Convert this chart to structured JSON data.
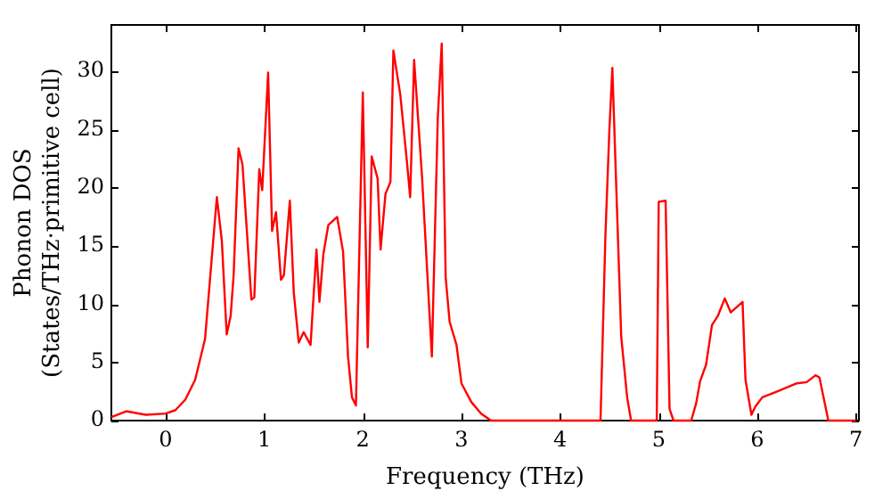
{
  "chart_data": {
    "type": "line",
    "xlabel": "Frequency (THz)",
    "ylabel": "Phonon DOS\n(States/THz·primitive cell)",
    "xlim": [
      -0.55,
      7.03
    ],
    "ylim": [
      0,
      34
    ],
    "xticks": [
      0,
      1,
      2,
      3,
      4,
      5,
      6,
      7
    ],
    "yticks": [
      0,
      5,
      10,
      15,
      20,
      25,
      30
    ],
    "grid": false,
    "legend": false,
    "marker": "none",
    "line_style": "solid",
    "series": [
      {
        "color": "#ff0000",
        "x": [
          -0.55,
          -0.4,
          -0.2,
          0,
          0.1,
          0.2,
          0.3,
          0.4,
          0.52,
          0.57,
          0.62,
          0.66,
          0.69,
          0.74,
          0.78,
          0.87,
          0.9,
          0.95,
          0.98,
          1.04,
          1.08,
          1.12,
          1.17,
          1.2,
          1.26,
          1.3,
          1.35,
          1.4,
          1.47,
          1.53,
          1.56,
          1.6,
          1.65,
          1.74,
          1.8,
          1.85,
          1.89,
          1.93,
          2.0,
          2.05,
          2.09,
          2.15,
          2.18,
          2.23,
          2.28,
          2.31,
          2.38,
          2.45,
          2.48,
          2.52,
          2.6,
          2.7,
          2.76,
          2.8,
          2.84,
          2.88,
          2.95,
          3.0,
          3.1,
          3.2,
          3.3,
          4.41,
          4.46,
          4.5,
          4.53,
          4.57,
          4.62,
          4.68,
          4.72,
          4.98,
          5.0,
          5.07,
          5.11,
          5.15,
          5.33,
          5.38,
          5.42,
          5.48,
          5.54,
          5.6,
          5.67,
          5.73,
          5.85,
          5.88,
          5.94,
          5.98,
          6.05,
          6.2,
          6.4,
          6.5,
          6.59,
          6.63,
          6.72,
          7.0
        ],
        "values": [
          0.3,
          0.8,
          0.5,
          0.6,
          0.9,
          1.8,
          3.5,
          7,
          19.2,
          15.5,
          7.4,
          9,
          12.5,
          23.4,
          22,
          10.4,
          10.6,
          21.6,
          19.8,
          29.9,
          16.3,
          17.9,
          12.1,
          12.5,
          18.9,
          11,
          6.7,
          7.6,
          6.5,
          14.7,
          10.2,
          14.3,
          16.8,
          17.5,
          14.5,
          5.5,
          2,
          1.3,
          28.2,
          6.3,
          22.7,
          20.8,
          14.7,
          19.5,
          20.5,
          31.8,
          28,
          22,
          19.2,
          31,
          21,
          5.5,
          26,
          32.4,
          12.3,
          8.5,
          6.5,
          3.2,
          1.6,
          0.6,
          0,
          0,
          16,
          25,
          30.3,
          20,
          7.2,
          2,
          0,
          0,
          18.8,
          18.9,
          1,
          0,
          0,
          1.5,
          3.4,
          4.8,
          8.2,
          9,
          10.5,
          9.3,
          10.2,
          3.5,
          0.5,
          1.2,
          2,
          2.5,
          3.2,
          3.3,
          3.9,
          3.7,
          0,
          0
        ]
      }
    ]
  }
}
